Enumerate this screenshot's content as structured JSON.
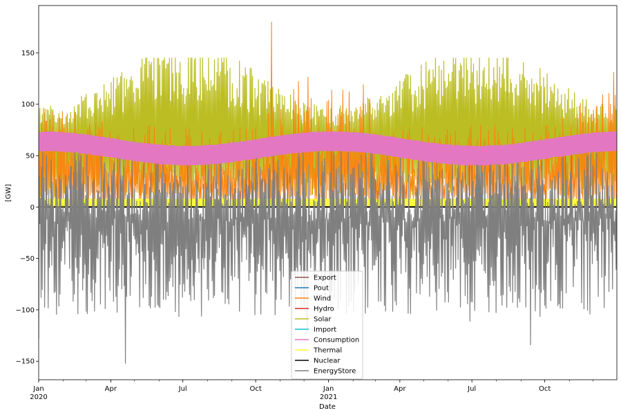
{
  "chart_data": {
    "type": "line",
    "title": "",
    "xlabel": "Date",
    "ylabel": "[GW]",
    "ylim": [
      -168,
      196
    ],
    "xlim": [
      "2020-01-01",
      "2021-12-31"
    ],
    "y_ticks": [
      -150,
      -100,
      -50,
      0,
      50,
      100,
      150
    ],
    "y_tick_labels": [
      "−150",
      "−100",
      "−50",
      "0",
      "50",
      "100",
      "150"
    ],
    "x_ticks": [
      {
        "date": "2020-01-01",
        "label": "Jan",
        "sublabel": "2020"
      },
      {
        "date": "2020-04-01",
        "label": "Apr",
        "sublabel": ""
      },
      {
        "date": "2020-07-01",
        "label": "Jul",
        "sublabel": ""
      },
      {
        "date": "2020-10-01",
        "label": "Oct",
        "sublabel": ""
      },
      {
        "date": "2021-01-01",
        "label": "Jan",
        "sublabel": "2021"
      },
      {
        "date": "2021-04-01",
        "label": "Apr",
        "sublabel": ""
      },
      {
        "date": "2021-07-01",
        "label": "Jul",
        "sublabel": ""
      },
      {
        "date": "2021-10-01",
        "label": "Oct",
        "sublabel": ""
      }
    ],
    "grid": false,
    "legend_position": "bottom-center",
    "series": [
      {
        "name": "Export",
        "color": "#8c564b",
        "values": [
          0,
          0
        ]
      },
      {
        "name": "Pout",
        "color": "#1f77b4",
        "values": [
          0,
          0
        ]
      },
      {
        "name": "Wind",
        "color": "#ff7f0e",
        "values": [
          0,
          180
        ],
        "peak": {
          "date": "2020-10-21",
          "value": 180
        }
      },
      {
        "name": "Hydro",
        "color": "#d62728",
        "values": [
          0,
          0
        ]
      },
      {
        "name": "Solar",
        "color": "#bcbd22",
        "values": [
          0,
          145
        ]
      },
      {
        "name": "Import",
        "color": "#17becf",
        "values": [
          0,
          0
        ]
      },
      {
        "name": "Consumption",
        "color": "#e377c2",
        "values": [
          42,
          73
        ],
        "band_center": {
          "winter": 64,
          "summer": 50
        }
      },
      {
        "name": "Thermal",
        "color": "#ffff33",
        "values": [
          0,
          8
        ]
      },
      {
        "name": "Nuclear",
        "color": "#000000",
        "values": [
          0,
          0
        ]
      },
      {
        "name": "EnergyStore",
        "color": "#7f7f7f",
        "values": [
          -152,
          60
        ],
        "min": {
          "date": "2020-04-20",
          "value": -152
        }
      }
    ]
  }
}
